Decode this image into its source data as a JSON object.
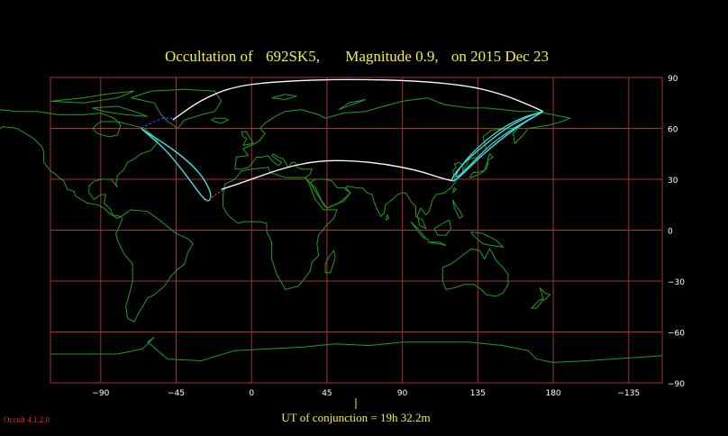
{
  "title": {
    "object": "692SK5,",
    "magnitude": "Magnitude 0.9,",
    "date": "on  2015 Dec 23",
    "prefix": "Occultation  of"
  },
  "footer": {
    "conjunction": "UT of conjunction = 19h 32.2m",
    "version": "Occult 4.1.2.0"
  },
  "axes": {
    "x_ticks": [
      {
        "label": "−90",
        "lon": -90
      },
      {
        "label": "−45",
        "lon": -45
      },
      {
        "label": "0",
        "lon": 0
      },
      {
        "label": "45",
        "lon": 45
      },
      {
        "label": "90",
        "lon": 90
      },
      {
        "label": "135",
        "lon": 135
      },
      {
        "label": "180",
        "lon": 180
      },
      {
        "label": "−135",
        "lon": 225
      }
    ],
    "y_ticks": [
      {
        "label": "90",
        "lat": 90
      },
      {
        "label": "60",
        "lat": 60
      },
      {
        "label": "30",
        "lat": 30
      },
      {
        "label": "0",
        "lat": 0
      },
      {
        "label": "−30",
        "lat": -30
      },
      {
        "label": "−60",
        "lat": -60
      },
      {
        "label": "−90",
        "lat": -90
      }
    ],
    "lon_range": [
      -120,
      245
    ],
    "lat_range": [
      -90,
      90
    ]
  },
  "colors": {
    "background": "#000000",
    "grid": "#a83232",
    "coast": "#1e9e1e",
    "title": "#f0f040",
    "axis_labels": "#ffffff",
    "path_center": "#ffffff",
    "path_limits": "#40e0e0",
    "path_dashed": "#ff3030",
    "path_blue": "#3040ff",
    "version": "#ff2020"
  },
  "tracks": {
    "north_arc": [
      [
        -47,
        65
      ],
      [
        -30,
        77
      ],
      [
        -10,
        85
      ],
      [
        20,
        88
      ],
      [
        60,
        89
      ],
      [
        100,
        88
      ],
      [
        130,
        85
      ],
      [
        150,
        80
      ],
      [
        165,
        74
      ],
      [
        174,
        70
      ]
    ],
    "south_arc": [
      [
        -18,
        24
      ],
      [
        0,
        30
      ],
      [
        20,
        37
      ],
      [
        40,
        41
      ],
      [
        60,
        41
      ],
      [
        80,
        39
      ],
      [
        100,
        35
      ],
      [
        112,
        31
      ],
      [
        120,
        29
      ]
    ],
    "west_loop": [
      [
        -66,
        60
      ],
      [
        -60,
        55
      ],
      [
        -52,
        48
      ],
      [
        -45,
        40
      ],
      [
        -38,
        31
      ],
      [
        -32,
        23
      ],
      [
        -28,
        18
      ],
      [
        -25,
        17
      ],
      [
        -24,
        21
      ],
      [
        -27,
        28
      ],
      [
        -33,
        36
      ],
      [
        -42,
        44
      ],
      [
        -52,
        51
      ],
      [
        -60,
        56
      ],
      [
        -66,
        60
      ]
    ],
    "east_loop_outer": [
      [
        174,
        70
      ],
      [
        165,
        67
      ],
      [
        155,
        62
      ],
      [
        145,
        55
      ],
      [
        135,
        47
      ],
      [
        127,
        40
      ],
      [
        121,
        33
      ],
      [
        119,
        29
      ],
      [
        121,
        29
      ],
      [
        126,
        33
      ],
      [
        133,
        40
      ],
      [
        142,
        48
      ],
      [
        152,
        56
      ],
      [
        162,
        63
      ],
      [
        174,
        70
      ]
    ],
    "east_loop_inner": [
      [
        174,
        70
      ],
      [
        160,
        66
      ],
      [
        146,
        58
      ],
      [
        134,
        48
      ],
      [
        125,
        38
      ],
      [
        121,
        31
      ],
      [
        124,
        32
      ],
      [
        132,
        40
      ],
      [
        142,
        50
      ],
      [
        153,
        58
      ],
      [
        165,
        65
      ],
      [
        174,
        70
      ]
    ],
    "blue_segment": [
      [
        -66,
        60
      ],
      [
        -60,
        63
      ],
      [
        -53,
        66
      ],
      [
        -47,
        66
      ]
    ],
    "red_segment": [
      [
        -27,
        17
      ],
      [
        -24,
        19
      ],
      [
        -20,
        22
      ],
      [
        -16,
        24
      ]
    ]
  }
}
